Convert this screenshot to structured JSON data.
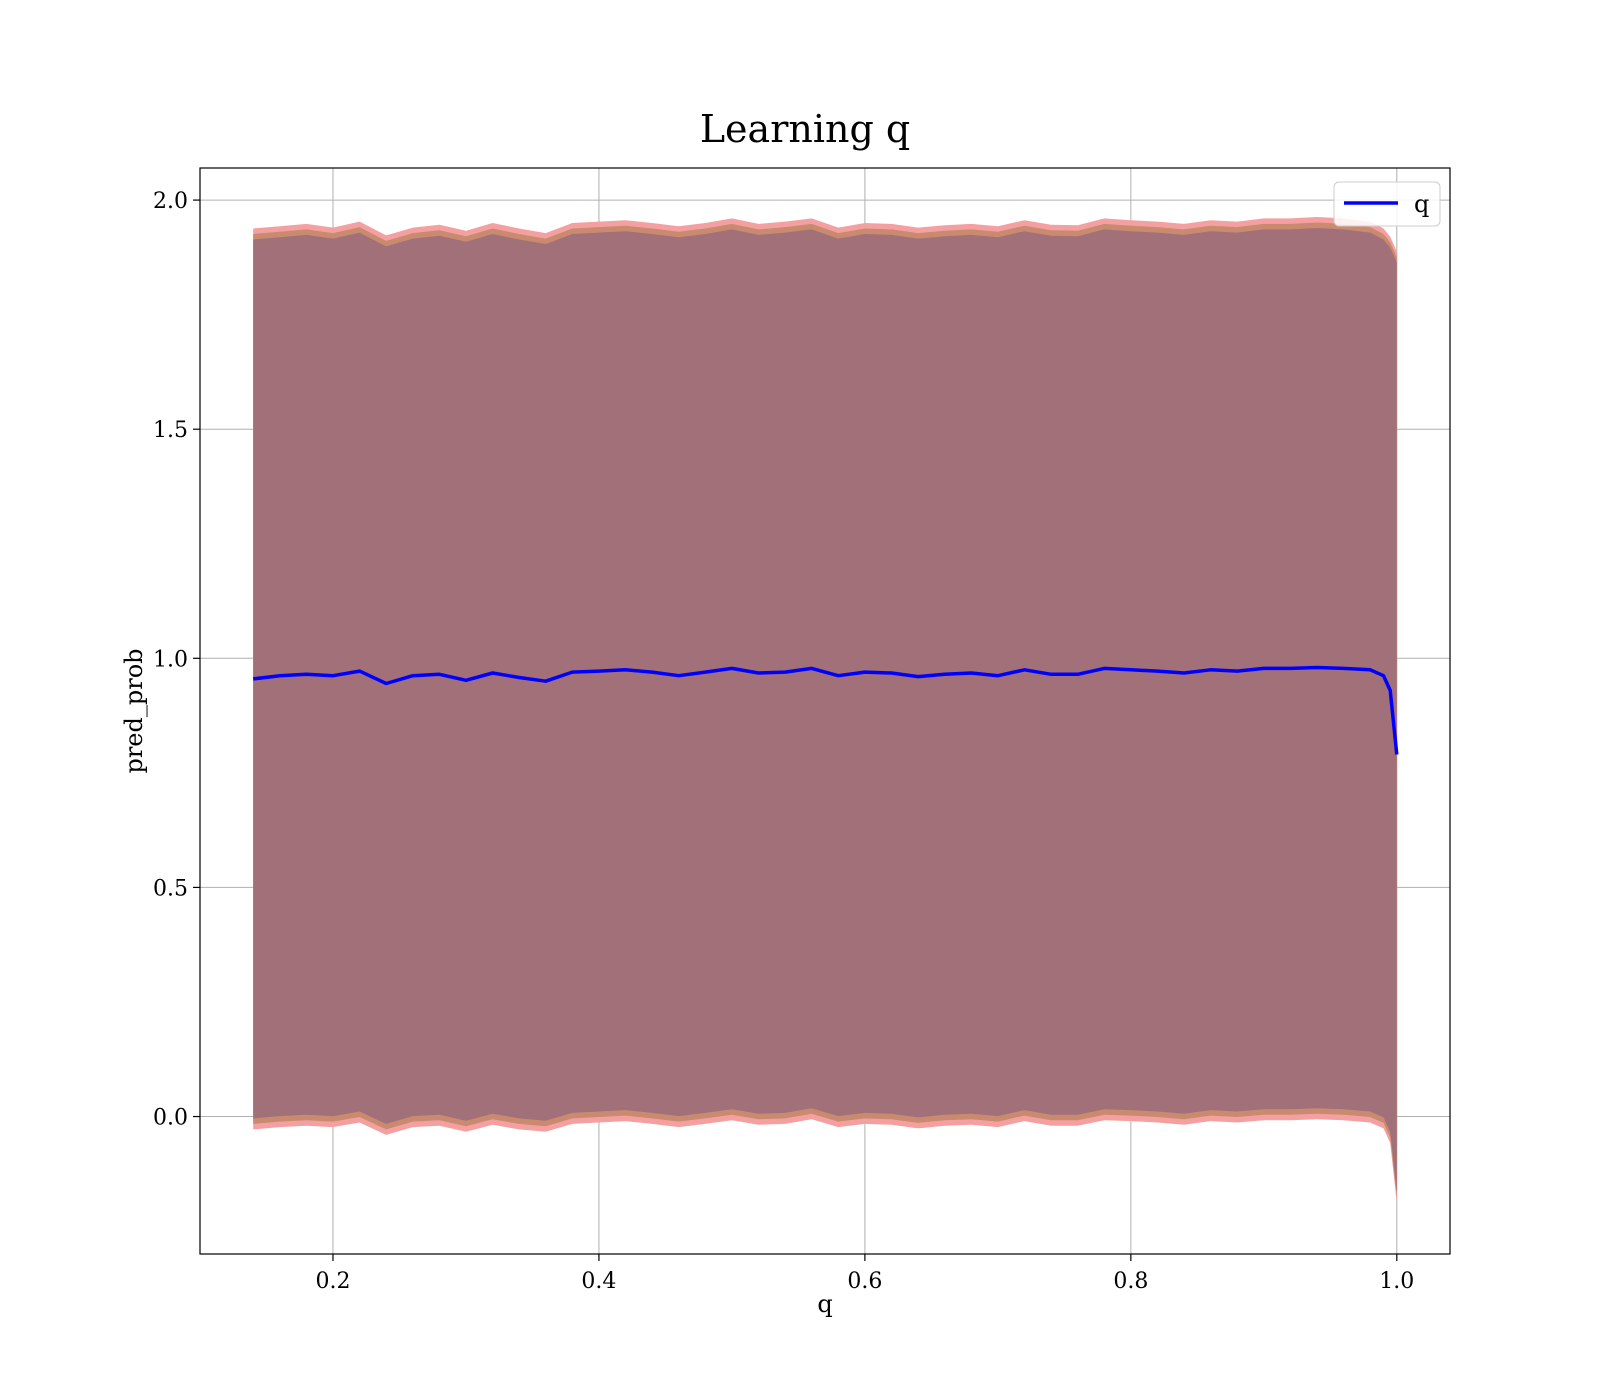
{
  "chart_data": {
    "type": "line",
    "title": "Learning q",
    "xlabel": "q",
    "ylabel": "pred_prob",
    "xlim": [
      0.1,
      1.04
    ],
    "ylim": [
      -0.3,
      2.07
    ],
    "xticks": [
      0.2,
      0.4,
      0.6,
      0.8,
      1.0
    ],
    "xtick_labels": [
      "0.2",
      "0.4",
      "0.6",
      "0.8",
      "1.0"
    ],
    "yticks": [
      0.0,
      0.5,
      1.0,
      1.5,
      2.0
    ],
    "ytick_labels": [
      "0.0",
      "0.5",
      "1.0",
      "1.5",
      "2.0"
    ],
    "grid": true,
    "legend": {
      "position": "top-right",
      "entries": [
        "q"
      ]
    },
    "colors": {
      "line": "#0000ff",
      "band_outer": "#f4a0a0",
      "band_mid": "#c98a70",
      "band_inner": "#a27079",
      "grid": "#b0b0b0"
    },
    "series": [
      {
        "name": "q",
        "x": [
          0.14,
          0.16,
          0.18,
          0.2,
          0.22,
          0.24,
          0.26,
          0.28,
          0.3,
          0.32,
          0.34,
          0.36,
          0.38,
          0.4,
          0.42,
          0.44,
          0.46,
          0.48,
          0.5,
          0.52,
          0.54,
          0.56,
          0.58,
          0.6,
          0.62,
          0.64,
          0.66,
          0.68,
          0.7,
          0.72,
          0.74,
          0.76,
          0.78,
          0.8,
          0.82,
          0.84,
          0.86,
          0.88,
          0.9,
          0.92,
          0.94,
          0.96,
          0.98,
          0.99,
          0.995,
          1.0
        ],
        "y": [
          0.955,
          0.962,
          0.965,
          0.962,
          0.972,
          0.945,
          0.962,
          0.965,
          0.952,
          0.968,
          0.958,
          0.95,
          0.97,
          0.972,
          0.975,
          0.97,
          0.962,
          0.97,
          0.978,
          0.968,
          0.97,
          0.978,
          0.962,
          0.97,
          0.968,
          0.96,
          0.965,
          0.968,
          0.962,
          0.975,
          0.965,
          0.965,
          0.978,
          0.975,
          0.972,
          0.968,
          0.975,
          0.972,
          0.978,
          0.978,
          0.98,
          0.978,
          0.975,
          0.962,
          0.93,
          0.79
        ]
      }
    ],
    "bands": [
      {
        "lower": [
          -0.02,
          -0.015,
          -0.012,
          -0.015,
          -0.005,
          -0.032,
          -0.015,
          -0.012,
          -0.025,
          -0.01,
          -0.02,
          -0.025,
          -0.008,
          -0.005,
          -0.002,
          -0.008,
          -0.015,
          -0.008,
          0.0,
          -0.01,
          -0.008,
          0.002,
          -0.015,
          -0.008,
          -0.01,
          -0.018,
          -0.012,
          -0.01,
          -0.015,
          -0.002,
          -0.012,
          -0.012,
          0.0,
          -0.002,
          -0.005,
          -0.01,
          -0.002,
          -0.005,
          0.0,
          0.0,
          0.002,
          0.0,
          -0.005,
          -0.018,
          -0.05,
          -0.18
        ],
        "upper": [
          1.93,
          1.935,
          1.94,
          1.932,
          1.945,
          1.915,
          1.932,
          1.938,
          1.925,
          1.942,
          1.93,
          1.92,
          1.942,
          1.945,
          1.948,
          1.942,
          1.935,
          1.942,
          1.952,
          1.94,
          1.945,
          1.952,
          1.932,
          1.942,
          1.94,
          1.932,
          1.937,
          1.94,
          1.935,
          1.948,
          1.938,
          1.937,
          1.952,
          1.948,
          1.945,
          1.94,
          1.948,
          1.945,
          1.952,
          1.952,
          1.955,
          1.952,
          1.945,
          1.93,
          1.912,
          1.88
        ]
      }
    ]
  }
}
